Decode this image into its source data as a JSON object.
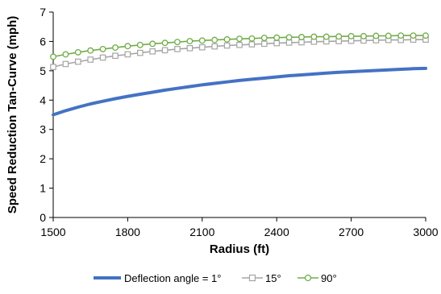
{
  "chart_data": {
    "type": "line",
    "title": "",
    "xlabel": "Radius (ft)",
    "ylabel": "Speed Reduction Tan-Curve (mph)",
    "xlim": [
      1500,
      3000
    ],
    "ylim": [
      0,
      7
    ],
    "xticks": [
      1500,
      1800,
      2100,
      2400,
      2700,
      3000
    ],
    "yticks": [
      0,
      1,
      2,
      3,
      4,
      5,
      6,
      7
    ],
    "grid": false,
    "legend_position": "bottom",
    "series": [
      {
        "name": "Deflection angle = 1°",
        "color": "#4472C4",
        "marker": "none",
        "x": [
          1500,
          1550,
          1600,
          1650,
          1700,
          1750,
          1800,
          1850,
          1900,
          1950,
          2000,
          2050,
          2100,
          2150,
          2200,
          2250,
          2300,
          2350,
          2400,
          2450,
          2500,
          2550,
          2600,
          2650,
          2700,
          2750,
          2800,
          2850,
          2900,
          2950,
          3000
        ],
        "y": [
          3.5,
          3.64,
          3.76,
          3.87,
          3.96,
          4.05,
          4.13,
          4.2,
          4.27,
          4.34,
          4.4,
          4.46,
          4.52,
          4.57,
          4.62,
          4.67,
          4.71,
          4.75,
          4.79,
          4.83,
          4.86,
          4.89,
          4.92,
          4.95,
          4.97,
          4.99,
          5.01,
          5.03,
          5.05,
          5.07,
          5.08
        ]
      },
      {
        "name": "15°",
        "color": "#A5A5A5",
        "marker": "square",
        "x": [
          1500,
          1550,
          1600,
          1650,
          1700,
          1750,
          1800,
          1850,
          1900,
          1950,
          2000,
          2050,
          2100,
          2150,
          2200,
          2250,
          2300,
          2350,
          2400,
          2450,
          2500,
          2550,
          2600,
          2650,
          2700,
          2750,
          2800,
          2850,
          2900,
          2950,
          3000
        ],
        "y": [
          5.13,
          5.23,
          5.31,
          5.38,
          5.45,
          5.51,
          5.56,
          5.61,
          5.66,
          5.7,
          5.74,
          5.77,
          5.8,
          5.83,
          5.86,
          5.88,
          5.9,
          5.92,
          5.94,
          5.96,
          5.97,
          5.99,
          6.0,
          6.01,
          6.02,
          6.03,
          6.04,
          6.05,
          6.05,
          6.06,
          6.06
        ]
      },
      {
        "name": "90°",
        "color": "#70AD47",
        "marker": "circle",
        "x": [
          1500,
          1550,
          1600,
          1650,
          1700,
          1750,
          1800,
          1850,
          1900,
          1950,
          2000,
          2050,
          2100,
          2150,
          2200,
          2250,
          2300,
          2350,
          2400,
          2450,
          2500,
          2550,
          2600,
          2650,
          2700,
          2750,
          2800,
          2850,
          2900,
          2950,
          3000
        ],
        "y": [
          5.48,
          5.56,
          5.63,
          5.69,
          5.74,
          5.79,
          5.84,
          5.88,
          5.92,
          5.95,
          5.98,
          6.01,
          6.03,
          6.05,
          6.07,
          6.09,
          6.1,
          6.12,
          6.13,
          6.14,
          6.15,
          6.16,
          6.16,
          6.17,
          6.18,
          6.18,
          6.19,
          6.19,
          6.2,
          6.2,
          6.2
        ]
      }
    ]
  }
}
